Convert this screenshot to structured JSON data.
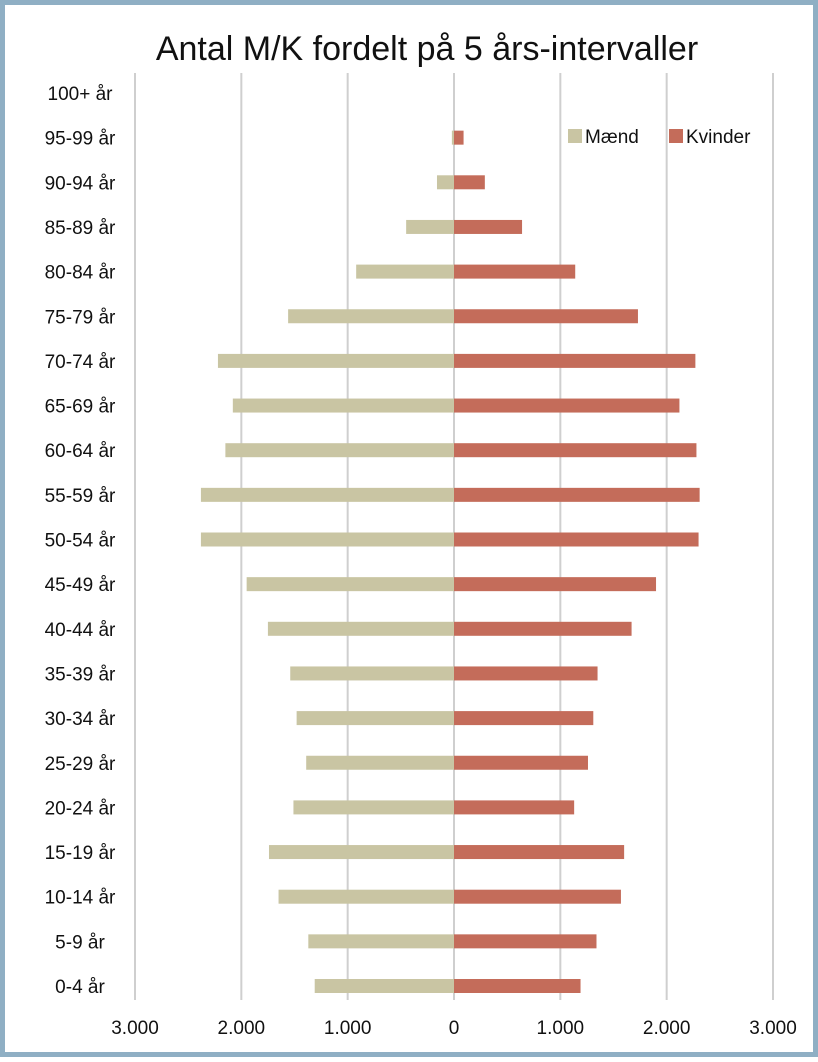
{
  "chart_data": {
    "type": "bar",
    "orientation": "horizontal",
    "title": "Antal M/K fordelt på 5 års-intervaller",
    "xlabel": "",
    "ylabel": "",
    "xlim": [
      -3000,
      3000
    ],
    "x_ticks": [
      -3000,
      -2000,
      -1000,
      0,
      1000,
      2000,
      3000
    ],
    "x_tick_labels": [
      "3.000",
      "2.000",
      "1.000",
      "0",
      "1.000",
      "2.000",
      "3.000"
    ],
    "grid": true,
    "legend_position": "top-right",
    "categories": [
      "100+ år",
      "95-99 år",
      "90-94 år",
      "85-89 år",
      "80-84 år",
      "75-79 år",
      "70-74 år",
      "65-69 år",
      "60-64 år",
      "55-59 år",
      "50-54 år",
      "45-49 år",
      "40-44 år",
      "35-39 år",
      "30-34 år",
      "25-29 år",
      "20-24 år",
      "15-19 år",
      "10-14 år",
      "5-9 år",
      "0-4 år"
    ],
    "series": [
      {
        "name": "Mænd",
        "color": "#c9c5a3",
        "direction": "left",
        "values": [
          0,
          20,
          160,
          450,
          920,
          1560,
          2220,
          2080,
          2150,
          2380,
          2380,
          1950,
          1750,
          1540,
          1480,
          1390,
          1510,
          1740,
          1650,
          1370,
          1310
        ]
      },
      {
        "name": "Kvinder",
        "color": "#c46c5a",
        "direction": "right",
        "values": [
          0,
          90,
          290,
          640,
          1140,
          1730,
          2270,
          2120,
          2280,
          2310,
          2300,
          1900,
          1670,
          1350,
          1310,
          1260,
          1130,
          1600,
          1570,
          1340,
          1190
        ]
      }
    ]
  }
}
